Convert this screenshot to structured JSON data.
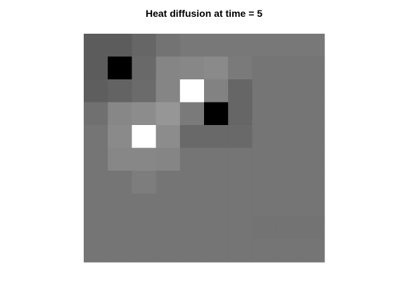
{
  "chart_data": {
    "type": "heatmap",
    "title": "Heat diffusion at time = 5",
    "xlabel": "",
    "ylabel": "",
    "colormap": "gray",
    "grid": false,
    "n_rows": 10,
    "n_cols": 10,
    "values": [
      [
        0.36,
        0.36,
        0.4,
        0.45,
        0.47,
        0.47,
        0.47,
        0.47,
        0.47,
        0.47
      ],
      [
        0.36,
        0.0,
        0.41,
        0.52,
        0.53,
        0.54,
        0.48,
        0.46,
        0.46,
        0.46
      ],
      [
        0.37,
        0.39,
        0.42,
        0.52,
        1.0,
        0.51,
        0.4,
        0.46,
        0.46,
        0.46
      ],
      [
        0.44,
        0.53,
        0.55,
        0.59,
        0.48,
        0.0,
        0.4,
        0.46,
        0.46,
        0.46
      ],
      [
        0.46,
        0.54,
        1.0,
        0.55,
        0.41,
        0.41,
        0.41,
        0.46,
        0.46,
        0.46
      ],
      [
        0.46,
        0.53,
        0.53,
        0.52,
        0.46,
        0.46,
        0.46,
        0.46,
        0.46,
        0.46
      ],
      [
        0.46,
        0.46,
        0.49,
        0.46,
        0.46,
        0.46,
        0.46,
        0.46,
        0.46,
        0.46
      ],
      [
        0.46,
        0.46,
        0.46,
        0.46,
        0.46,
        0.46,
        0.46,
        0.46,
        0.46,
        0.46
      ],
      [
        0.46,
        0.46,
        0.46,
        0.46,
        0.46,
        0.46,
        0.46,
        0.45,
        0.45,
        0.45
      ],
      [
        0.46,
        0.46,
        0.46,
        0.46,
        0.46,
        0.46,
        0.46,
        0.46,
        0.46,
        0.46
      ]
    ]
  }
}
